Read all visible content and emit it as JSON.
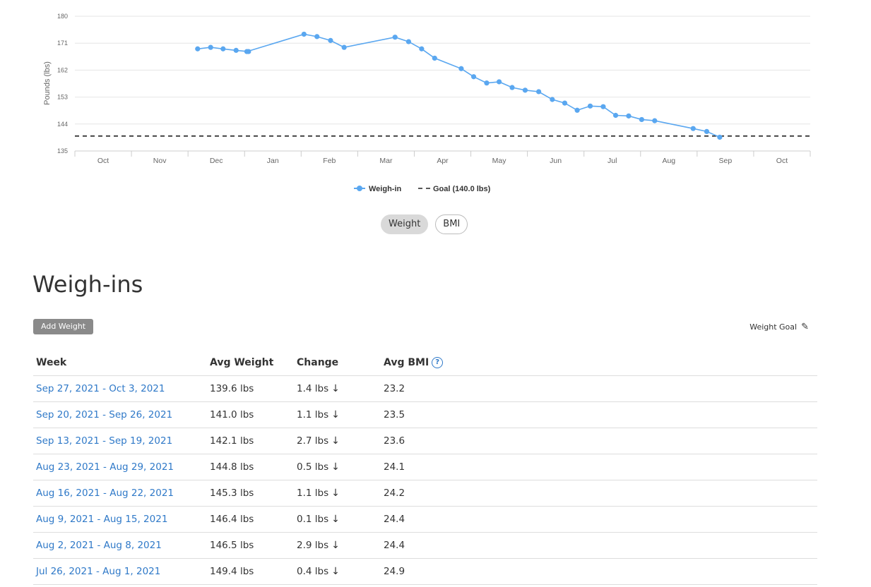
{
  "chart_data": {
    "type": "line",
    "ylabel": "Pounds (lbs)",
    "yticks": [
      135,
      144,
      153,
      162,
      171,
      180
    ],
    "ylim": [
      135,
      180
    ],
    "months": [
      "Oct",
      "Nov",
      "Dec",
      "Jan",
      "Feb",
      "Mar",
      "Apr",
      "May",
      "Jun",
      "Jul",
      "Aug",
      "Sep",
      "Oct"
    ],
    "goal": 140.0,
    "legend": {
      "weighin_label": "Weigh-in",
      "goal_label": "Goal (140.0 lbs)",
      "placement": "bottom"
    },
    "series": [
      {
        "name": "Weigh-in",
        "points": [
          {
            "m": 2.17,
            "v": 169.1
          },
          {
            "m": 2.4,
            "v": 169.6
          },
          {
            "m": 2.62,
            "v": 169.1
          },
          {
            "m": 2.85,
            "v": 168.6
          },
          {
            "m": 3.07,
            "v": 168.2
          },
          {
            "m": 3.04,
            "v": 168.2
          },
          {
            "m": 4.05,
            "v": 174.0
          },
          {
            "m": 4.28,
            "v": 173.2
          },
          {
            "m": 4.52,
            "v": 171.9
          },
          {
            "m": 4.76,
            "v": 169.6
          },
          {
            "m": 5.66,
            "v": 173.0
          },
          {
            "m": 5.9,
            "v": 171.5
          },
          {
            "m": 6.13,
            "v": 169.1
          },
          {
            "m": 6.36,
            "v": 166.0
          },
          {
            "m": 6.83,
            "v": 162.5
          },
          {
            "m": 7.05,
            "v": 159.8
          },
          {
            "m": 7.28,
            "v": 157.7
          },
          {
            "m": 7.5,
            "v": 158.1
          },
          {
            "m": 7.73,
            "v": 156.2
          },
          {
            "m": 7.96,
            "v": 155.3
          },
          {
            "m": 8.2,
            "v": 154.8
          },
          {
            "m": 8.44,
            "v": 152.2
          },
          {
            "m": 8.66,
            "v": 151.0
          },
          {
            "m": 8.88,
            "v": 148.6
          },
          {
            "m": 9.11,
            "v": 150.0
          },
          {
            "m": 9.34,
            "v": 149.8
          },
          {
            "m": 9.56,
            "v": 146.9
          },
          {
            "m": 9.79,
            "v": 146.7
          },
          {
            "m": 10.02,
            "v": 145.5
          },
          {
            "m": 10.25,
            "v": 145.1
          },
          {
            "m": 10.93,
            "v": 142.5
          },
          {
            "m": 11.17,
            "v": 141.5
          },
          {
            "m": 11.4,
            "v": 139.6
          }
        ]
      }
    ]
  },
  "toggle": {
    "weight_label": "Weight",
    "bmi_label": "BMI",
    "active": "weight"
  },
  "section": {
    "title": "Weigh-ins",
    "add_weight_label": "Add Weight",
    "weight_goal_label": "Weight Goal"
  },
  "table": {
    "headers": {
      "week": "Week",
      "avg_weight": "Avg Weight",
      "change": "Change",
      "avg_bmi": "Avg BMI"
    },
    "rows": [
      {
        "week": "Sep 27, 2021 - Oct 3, 2021",
        "avg": "139.6 lbs",
        "change": "1.4 lbs",
        "bmi": "23.2"
      },
      {
        "week": "Sep 20, 2021 - Sep 26, 2021",
        "avg": "141.0 lbs",
        "change": "1.1 lbs",
        "bmi": "23.5"
      },
      {
        "week": "Sep 13, 2021 - Sep 19, 2021",
        "avg": "142.1 lbs",
        "change": "2.7 lbs",
        "bmi": "23.6"
      },
      {
        "week": "Aug 23, 2021 - Aug 29, 2021",
        "avg": "144.8 lbs",
        "change": "0.5 lbs",
        "bmi": "24.1"
      },
      {
        "week": "Aug 16, 2021 - Aug 22, 2021",
        "avg": "145.3 lbs",
        "change": "1.1 lbs",
        "bmi": "24.2"
      },
      {
        "week": "Aug 9, 2021 - Aug 15, 2021",
        "avg": "146.4 lbs",
        "change": "0.1 lbs",
        "bmi": "24.4"
      },
      {
        "week": "Aug 2, 2021 - Aug 8, 2021",
        "avg": "146.5 lbs",
        "change": "2.9 lbs",
        "bmi": "24.4"
      },
      {
        "week": "Jul 26, 2021 - Aug 1, 2021",
        "avg": "149.4 lbs",
        "change": "0.4 lbs",
        "bmi": "24.9"
      }
    ]
  },
  "colors": {
    "series": "#5aa7f0",
    "link": "#2f79c8",
    "grid": "#e6e6e6"
  },
  "icons": {
    "help": "question-circle-icon",
    "edit": "pencil-icon",
    "change_direction": "down-arrow-icon"
  }
}
